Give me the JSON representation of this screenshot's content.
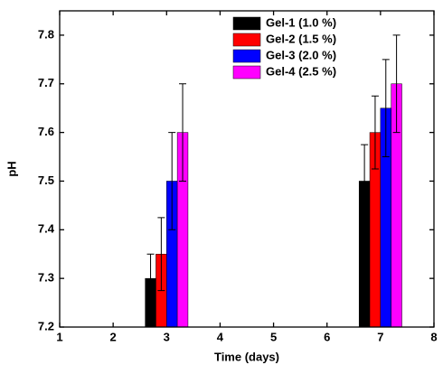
{
  "chart_data": {
    "type": "bar",
    "x_label": "Time (days)",
    "y_label": "pH",
    "x": [
      3,
      7
    ],
    "series": [
      {
        "name": "Gel-1 (1.0 %)",
        "color": "#000000",
        "values": [
          7.3,
          7.5
        ],
        "errors": [
          0.05,
          0.075
        ]
      },
      {
        "name": "Gel-2 (1.5 %)",
        "color": "#ff0000",
        "values": [
          7.35,
          7.6
        ],
        "errors": [
          0.075,
          0.075
        ]
      },
      {
        "name": "Gel-3 (2.0 %)",
        "color": "#0000ff",
        "values": [
          7.5,
          7.65
        ],
        "errors": [
          0.1,
          0.1
        ]
      },
      {
        "name": "Gel-4 (2.5 %)",
        "color": "#ff00ff",
        "values": [
          7.6,
          7.7
        ],
        "errors": [
          0.1,
          0.1
        ]
      }
    ],
    "xlim": [
      1,
      8
    ],
    "xticks": [
      1,
      2,
      3,
      4,
      5,
      6,
      7,
      8
    ],
    "ylim": [
      7.2,
      7.85
    ],
    "yticks": [
      7.2,
      7.3,
      7.4,
      7.5,
      7.6,
      7.7,
      7.8
    ],
    "legend": "upper right"
  }
}
